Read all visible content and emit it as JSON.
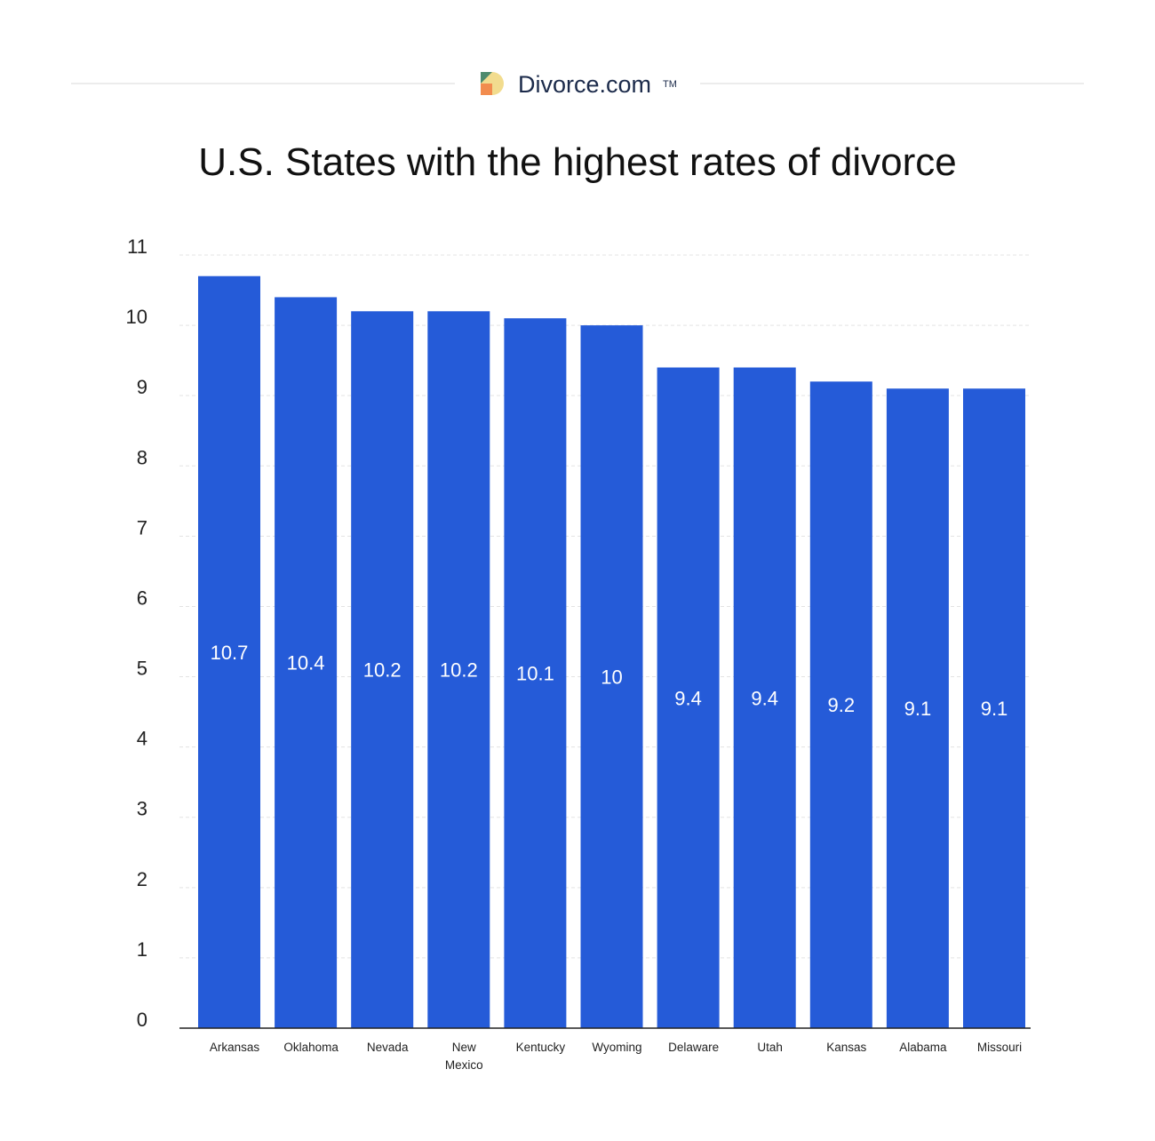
{
  "brand": {
    "name": "Divorce.com",
    "trademark": "TM"
  },
  "chart_data": {
    "type": "bar",
    "title": "U.S. States with the highest rates of divorce",
    "xlabel": "",
    "ylabel": "",
    "categories": [
      "Arkansas",
      "Oklahoma",
      "Nevada",
      "New Mexico",
      "Kentucky",
      "Wyoming",
      "Delaware",
      "Utah",
      "Kansas",
      "Alabama",
      "Missouri"
    ],
    "values": [
      10.7,
      10.4,
      10.2,
      10.2,
      10.1,
      10,
      9.4,
      9.4,
      9.2,
      9.1,
      9.1
    ],
    "value_labels": [
      "10.7",
      "10.4",
      "10.2",
      "10.2",
      "10.1",
      "10",
      "9.4",
      "9.4",
      "9.2",
      "9.1",
      "9.1"
    ],
    "ylim": [
      0,
      11
    ],
    "yticks": [
      "0",
      "1",
      "2",
      "3",
      "4",
      "5",
      "6",
      "7",
      "8",
      "9",
      "10",
      "11"
    ],
    "grid": true,
    "bar_color": "#255BD8",
    "label_color": "#FFFFFF"
  }
}
